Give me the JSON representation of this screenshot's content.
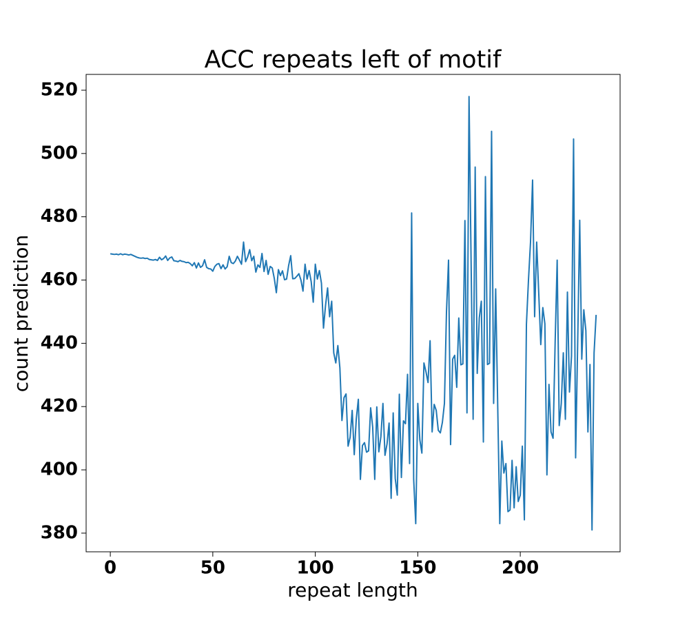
{
  "chart_data": {
    "type": "line",
    "title": "ACC repeats left of motif",
    "xlabel": "repeat length",
    "ylabel": "count prediction",
    "xlim": [
      -11.8,
      248.7
    ],
    "ylim": [
      374.1,
      525.0
    ],
    "xticks": [
      0,
      50,
      100,
      150,
      200
    ],
    "yticks": [
      380,
      400,
      420,
      440,
      460,
      480,
      500,
      520
    ],
    "x": [
      0,
      1,
      2,
      3,
      4,
      5,
      6,
      7,
      8,
      9,
      10,
      11,
      12,
      13,
      14,
      15,
      16,
      17,
      18,
      19,
      20,
      21,
      22,
      23,
      24,
      25,
      26,
      27,
      28,
      29,
      30,
      31,
      32,
      33,
      34,
      35,
      36,
      37,
      38,
      39,
      40,
      41,
      42,
      43,
      44,
      45,
      46,
      47,
      48,
      49,
      50,
      51,
      52,
      53,
      54,
      55,
      56,
      57,
      58,
      59,
      60,
      61,
      62,
      63,
      64,
      65,
      66,
      67,
      68,
      69,
      70,
      71,
      72,
      73,
      74,
      75,
      76,
      77,
      78,
      79,
      80,
      81,
      82,
      83,
      84,
      85,
      86,
      87,
      88,
      89,
      90,
      91,
      92,
      93,
      94,
      95,
      96,
      97,
      98,
      99,
      100,
      101,
      102,
      103,
      104,
      105,
      106,
      107,
      108,
      109,
      110,
      111,
      112,
      113,
      114,
      115,
      116,
      117,
      118,
      119,
      120,
      121,
      122,
      123,
      124,
      125,
      126,
      127,
      128,
      129,
      130,
      131,
      132,
      133,
      134,
      135,
      136,
      137,
      138,
      139,
      140,
      141,
      142,
      143,
      144,
      145,
      146,
      147,
      148,
      149,
      150,
      151,
      152,
      153,
      154,
      155,
      156,
      157,
      158,
      159,
      160,
      161,
      162,
      163,
      164,
      165,
      166,
      167,
      168,
      169,
      170,
      171,
      172,
      173,
      174,
      175,
      176,
      177,
      178,
      179,
      180,
      181,
      182,
      183,
      184,
      185,
      186,
      187,
      188,
      189,
      190,
      191,
      192,
      193,
      194,
      195,
      196,
      197,
      198,
      199,
      200,
      201,
      202,
      203,
      204,
      205,
      206,
      207,
      208,
      209,
      210,
      211,
      212,
      213,
      214,
      215,
      216,
      217,
      218,
      219,
      220,
      221,
      222,
      223,
      224,
      225,
      226,
      227,
      228,
      229,
      230,
      231,
      232,
      233,
      234,
      235,
      236,
      237
    ],
    "series": [
      {
        "name": "count prediction",
        "color": "#1f77b4",
        "values": [
          468.3,
          468.2,
          468.1,
          468.2,
          468.0,
          468.3,
          468.0,
          468.2,
          468.1,
          467.9,
          468.1,
          467.8,
          467.5,
          467.2,
          467.0,
          466.9,
          467.0,
          466.8,
          466.9,
          466.5,
          466.4,
          466.3,
          466.5,
          466.2,
          467.2,
          466.4,
          466.8,
          467.6,
          466.2,
          467.0,
          467.3,
          466.1,
          466.0,
          465.8,
          466.2,
          465.9,
          465.8,
          465.5,
          465.6,
          465.2,
          464.5,
          465.5,
          463.8,
          465.4,
          464.0,
          464.5,
          466.4,
          464.0,
          463.6,
          463.5,
          462.8,
          464.3,
          465.0,
          465.2,
          463.6,
          464.8,
          463.5,
          464.2,
          467.5,
          465.5,
          465.2,
          466.0,
          467.5,
          466.3,
          465.0,
          472.0,
          465.8,
          467.3,
          469.6,
          466.1,
          467.5,
          462.5,
          464.8,
          464.0,
          468.4,
          462.7,
          466.2,
          461.8,
          464.3,
          463.8,
          460.5,
          456.0,
          463.3,
          461.4,
          462.9,
          460.1,
          460.3,
          464.6,
          467.7,
          460.4,
          460.5,
          461.2,
          462.0,
          460.0,
          456.5,
          465.0,
          460.3,
          463.0,
          459.5,
          453.0,
          465.0,
          460.3,
          463.0,
          459.0,
          444.8,
          452.0,
          457.5,
          448.4,
          453.3,
          437.0,
          433.8,
          439.3,
          432.2,
          415.6,
          422.8,
          424.0,
          407.5,
          410.3,
          418.8,
          404.8,
          416.1,
          422.3,
          397.0,
          407.7,
          408.6,
          405.6,
          406.0,
          419.6,
          413.5,
          397.0,
          419.9,
          405.7,
          410.5,
          421.0,
          404.6,
          408.2,
          414.8,
          391.0,
          418.0,
          397.3,
          392.0,
          423.9,
          397.6,
          415.5,
          414.6,
          430.2,
          402.0,
          481.2,
          397.0,
          383.0,
          421.0,
          409.5,
          405.3,
          433.8,
          431.0,
          427.6,
          440.8,
          412.0,
          420.7,
          418.8,
          412.5,
          411.7,
          415.0,
          421.0,
          450.0,
          466.3,
          408.0,
          435.0,
          436.2,
          426.1,
          448.0,
          433.2,
          433.5,
          478.8,
          418.0,
          518.0,
          466.3,
          416.0,
          495.7,
          430.5,
          448.0,
          453.3,
          408.8,
          492.7,
          433.3,
          433.7,
          507.0,
          421.0,
          457.2,
          420.0,
          383.0,
          409.1,
          399.0,
          402.0,
          386.8,
          387.3,
          403.0,
          388.0,
          401.0,
          390.0,
          392.0,
          407.5,
          384.2,
          446.0,
          460.0,
          472.0,
          491.6,
          448.4,
          472.0,
          456.0,
          439.6,
          451.3,
          446.2,
          398.4,
          427.0,
          412.0,
          410.0,
          440.0,
          466.3,
          414.0,
          421.0,
          437.0,
          416.0,
          456.2,
          424.6,
          436.0,
          504.6,
          403.8,
          440.0,
          478.9,
          435.0,
          450.6,
          444.0,
          412.0,
          433.3,
          381.0,
          437.0,
          449.0
        ]
      }
    ]
  }
}
